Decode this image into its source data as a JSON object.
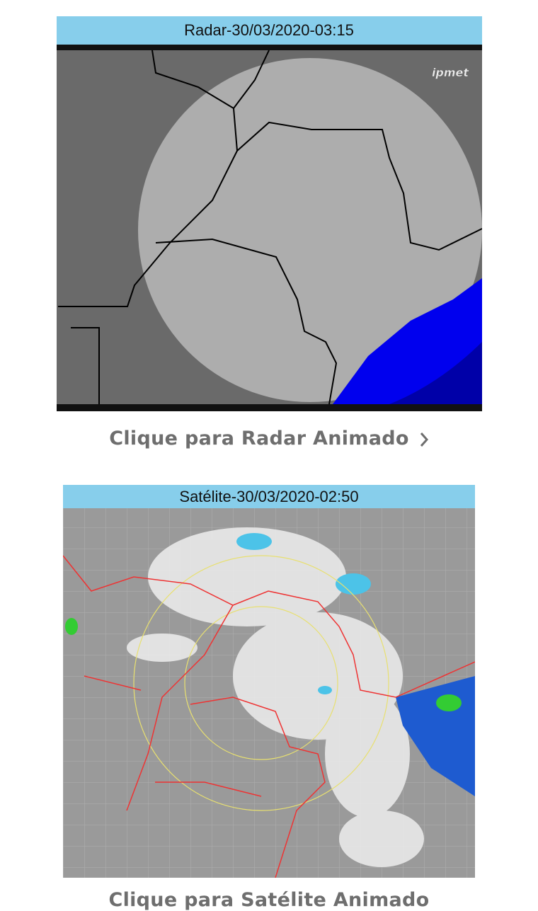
{
  "radar": {
    "title": "Radar-30/03/2020-03:15",
    "logo": "ipmet",
    "link": "Clique para Radar Animado"
  },
  "satellite": {
    "title": "Satélite-30/03/2020-02:50",
    "link": "Clique para Satélite Animado"
  }
}
